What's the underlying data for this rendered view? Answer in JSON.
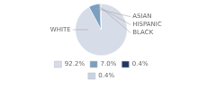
{
  "chart_data": {
    "type": "pie",
    "categories": [
      "WHITE",
      "ASIAN",
      "HISPANIC",
      "BLACK"
    ],
    "values": [
      92.2,
      7.0,
      0.4,
      0.4
    ],
    "value_labels": [
      "92.2%",
      "7.0%",
      "0.4%",
      "0.4%"
    ],
    "colors": [
      "#d6dce8",
      "#7a9fbf",
      "#1f3864",
      "#c8d4e3"
    ],
    "legend": "bottom"
  }
}
